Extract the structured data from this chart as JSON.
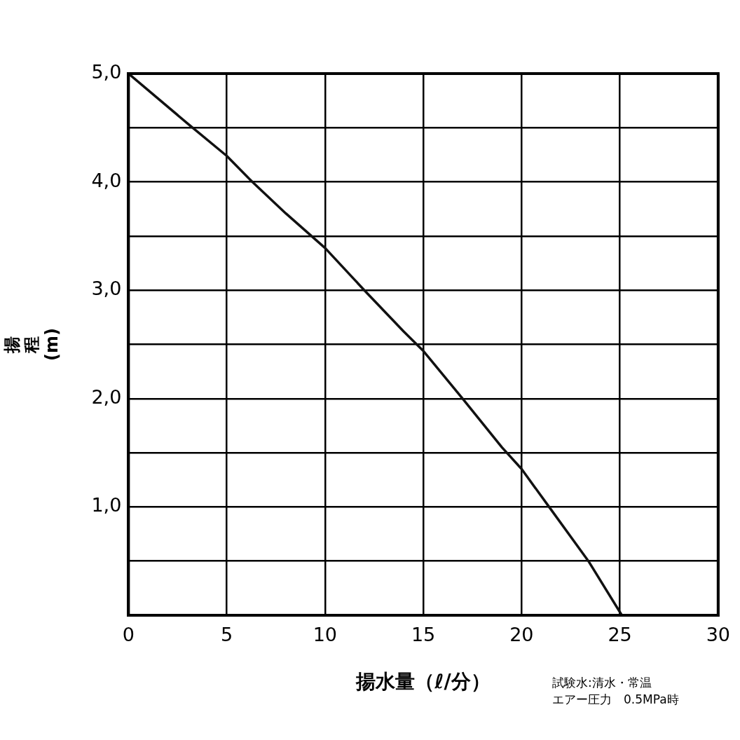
{
  "chart_data": {
    "type": "line",
    "xlabel": "揚水量（ℓ/分）",
    "ylabel": "揚程(m)",
    "x": [
      0,
      3,
      5,
      6.3,
      8,
      10,
      12,
      14,
      15,
      17,
      19,
      20,
      21.4,
      23.4,
      25.1
    ],
    "series": [
      {
        "color": "#111111",
        "values": [
          5.0,
          4.54,
          4.24,
          4.0,
          3.71,
          3.39,
          3.0,
          2.62,
          2.44,
          2.0,
          1.55,
          1.35,
          1.0,
          0.5,
          0.0
        ]
      }
    ],
    "xlim": [
      0,
      30
    ],
    "xticks": [
      0,
      5,
      10,
      15,
      20,
      25,
      30
    ],
    "ylim": [
      0,
      5
    ],
    "yticks": [
      {
        "value": 0,
        "label": null
      },
      {
        "value": 0.5,
        "label": null
      },
      {
        "value": 1,
        "label": "1,0"
      },
      {
        "value": 1.5,
        "label": null
      },
      {
        "value": 2,
        "label": "2,0"
      },
      {
        "value": 2.5,
        "label": null
      },
      {
        "value": 3,
        "label": "3,0"
      },
      {
        "value": 3.5,
        "label": null
      },
      {
        "value": 4,
        "label": "4,0"
      },
      {
        "value": 4.5,
        "label": null
      },
      {
        "value": 5,
        "label": "5,0"
      }
    ],
    "grid": true,
    "legend": false,
    "marker": "none",
    "line_style": "solid",
    "annotations": [
      "試験水:清水・常温",
      "エアー圧力　0.5MPa時"
    ]
  }
}
